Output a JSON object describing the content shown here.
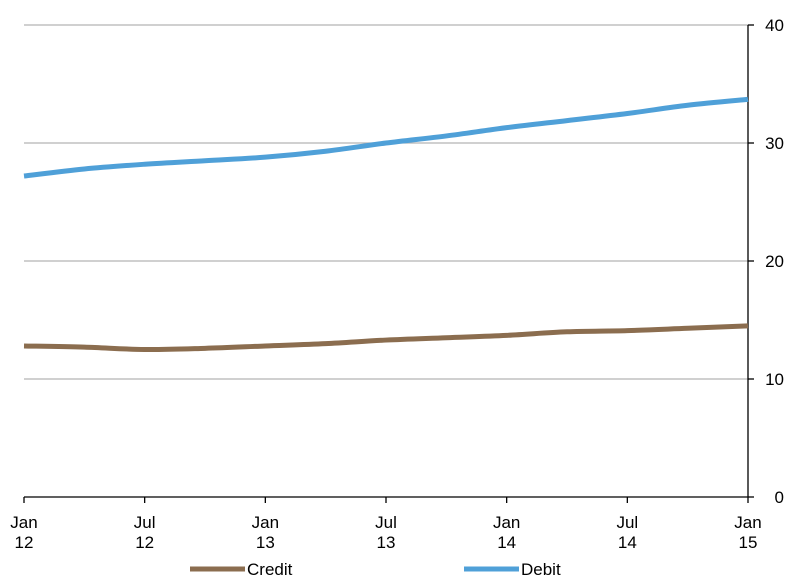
{
  "chart_data": {
    "type": "line",
    "title": "",
    "xlabel": "",
    "ylabel": "",
    "x_ticks": [
      {
        "value": "2012-01",
        "line1": "Jan",
        "line2": "12"
      },
      {
        "value": "2012-07",
        "line1": "Jul",
        "line2": "12"
      },
      {
        "value": "2013-01",
        "line1": "Jan",
        "line2": "13"
      },
      {
        "value": "2013-07",
        "line1": "Jul",
        "line2": "13"
      },
      {
        "value": "2014-01",
        "line1": "Jan",
        "line2": "14"
      },
      {
        "value": "2014-07",
        "line1": "Jul",
        "line2": "14"
      },
      {
        "value": "2015-01",
        "line1": "Jan",
        "line2": "15"
      }
    ],
    "xlim": [
      "2012-01",
      "2015-01"
    ],
    "y_axis_position": "right",
    "ylim": [
      0,
      40
    ],
    "y_ticks": [
      0,
      10,
      20,
      30,
      40
    ],
    "grid": "horizontal",
    "legend_position": "bottom",
    "series": [
      {
        "name": "Credit",
        "color": "#8B6D4F",
        "points": [
          [
            "2012-01",
            12.8
          ],
          [
            "2012-04",
            12.7
          ],
          [
            "2012-07",
            12.5
          ],
          [
            "2012-10",
            12.6
          ],
          [
            "2013-01",
            12.8
          ],
          [
            "2013-04",
            13.0
          ],
          [
            "2013-07",
            13.3
          ],
          [
            "2013-10",
            13.5
          ],
          [
            "2014-01",
            13.7
          ],
          [
            "2014-04",
            14.0
          ],
          [
            "2014-07",
            14.1
          ],
          [
            "2014-10",
            14.3
          ],
          [
            "2015-01",
            14.5
          ]
        ]
      },
      {
        "name": "Debit",
        "color": "#4FA0D8",
        "points": [
          [
            "2012-01",
            27.2
          ],
          [
            "2012-04",
            27.8
          ],
          [
            "2012-07",
            28.2
          ],
          [
            "2012-10",
            28.5
          ],
          [
            "2013-01",
            28.8
          ],
          [
            "2013-04",
            29.3
          ],
          [
            "2013-07",
            30.0
          ],
          [
            "2013-10",
            30.6
          ],
          [
            "2014-01",
            31.3
          ],
          [
            "2014-04",
            31.9
          ],
          [
            "2014-07",
            32.5
          ],
          [
            "2014-10",
            33.2
          ],
          [
            "2015-01",
            33.7
          ]
        ]
      }
    ]
  }
}
